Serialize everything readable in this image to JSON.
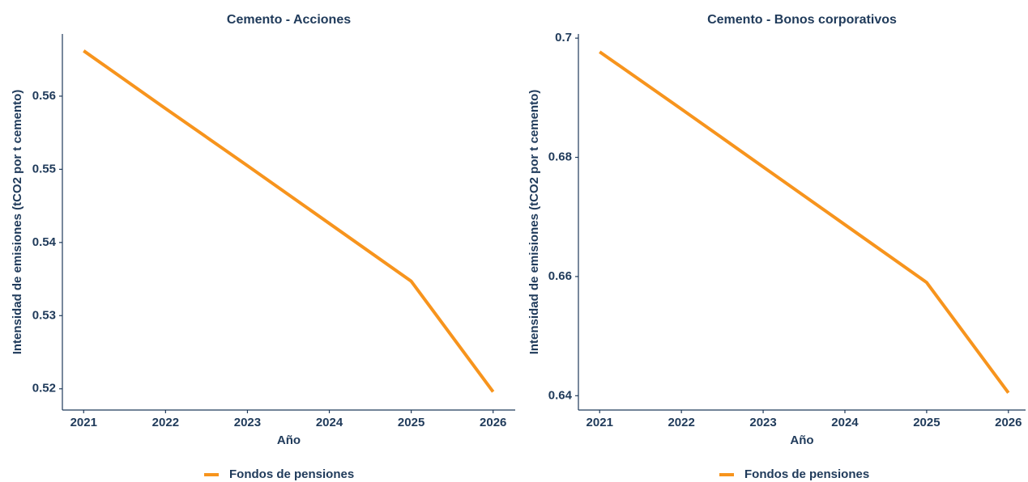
{
  "chart_data": [
    {
      "type": "line",
      "title": "Cemento - Acciones",
      "x_label": "Año",
      "y_label": "Intensidad de emisiones (tCO2 por t cemento)",
      "x": [
        2021,
        2022,
        2023,
        2024,
        2025,
        2026
      ],
      "series": [
        {
          "name": "Fondos de pensiones",
          "color": "#f7941d",
          "values": [
            0.5662,
            0.5583,
            0.5505,
            0.5426,
            0.5347,
            0.5196
          ]
        }
      ],
      "xlim": [
        2020.74,
        2026.27
      ],
      "xticks": [
        2021,
        2022,
        2023,
        2024,
        2025,
        2026
      ],
      "ylim": [
        0.5171,
        0.5685
      ],
      "yticks": [
        0.52,
        0.53,
        0.54,
        0.55,
        0.56
      ],
      "grid": false,
      "legend": "bottom"
    },
    {
      "type": "line",
      "title": "Cemento - Bonos corporativos",
      "x_label": "Año",
      "y_label": "Intensidad de emisiones (tCO2 por t cemento)",
      "x": [
        2021,
        2022,
        2023,
        2024,
        2025,
        2026
      ],
      "series": [
        {
          "name": "Fondos de pensiones",
          "color": "#f7941d",
          "values": [
            0.6977,
            0.6881,
            0.6784,
            0.6687,
            0.659,
            0.6405
          ]
        }
      ],
      "xlim": [
        2020.74,
        2026.21
      ],
      "xticks": [
        2021,
        2022,
        2023,
        2024,
        2025,
        2026
      ],
      "ylim": [
        0.6376,
        0.7007
      ],
      "yticks": [
        0.64,
        0.66,
        0.68,
        0.7
      ],
      "grid": false,
      "legend": "bottom"
    }
  ]
}
